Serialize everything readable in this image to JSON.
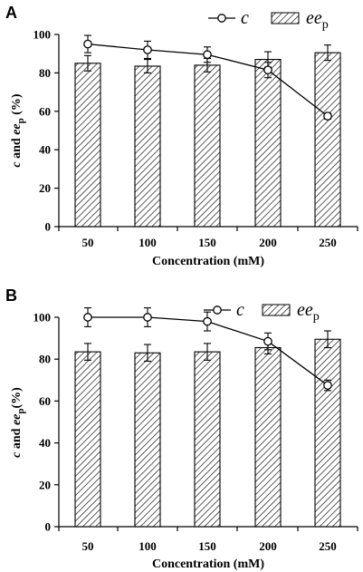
{
  "chart_data": [
    {
      "type": "bar",
      "panel_label": "A",
      "categories": [
        "50",
        "100",
        "150",
        "200",
        "250"
      ],
      "xlabel": "Concentration (mM)",
      "ylabel_main": "c",
      "ylabel_mid": " and ",
      "ylabel_ee": "ee",
      "ylabel_sub": "p",
      "ylabel_tail": " (%)",
      "ylim": [
        0,
        100
      ],
      "yticks": [
        "0",
        "20",
        "40",
        "60",
        "80",
        "100"
      ],
      "legend": {
        "line_name": "c",
        "bar_name": "ee",
        "bar_sub": "p"
      },
      "series": [
        {
          "kind": "bar",
          "values": [
            85,
            83.5,
            84,
            87,
            90.5
          ],
          "errors": [
            4,
            3.5,
            3.5,
            4,
            4
          ]
        },
        {
          "kind": "line",
          "values": [
            95,
            92,
            89.5,
            81.5,
            57.5
          ],
          "errors": [
            4.5,
            4.5,
            4,
            4,
            1.5
          ]
        }
      ]
    },
    {
      "type": "bar",
      "panel_label": "B",
      "categories": [
        "50",
        "100",
        "150",
        "200",
        "250"
      ],
      "xlabel": "Concentration (mM)",
      "ylabel_main": "c",
      "ylabel_mid": " and ",
      "ylabel_ee": "ee",
      "ylabel_sub": "p",
      "ylabel_tail": "(%)",
      "ylim": [
        0,
        100
      ],
      "yticks": [
        "0",
        "20",
        "40",
        "60",
        "80",
        "100"
      ],
      "legend": {
        "line_name": "c",
        "bar_name": "ee",
        "bar_sub": "p"
      },
      "series": [
        {
          "kind": "bar",
          "values": [
            83.5,
            83,
            83.5,
            85.5,
            89.5
          ],
          "errors": [
            4,
            4,
            4,
            3,
            4
          ]
        },
        {
          "kind": "line",
          "values": [
            100,
            100,
            98,
            88.5,
            67.5
          ],
          "errors": [
            4.5,
            4.5,
            4.5,
            4,
            2.5
          ]
        }
      ]
    }
  ]
}
